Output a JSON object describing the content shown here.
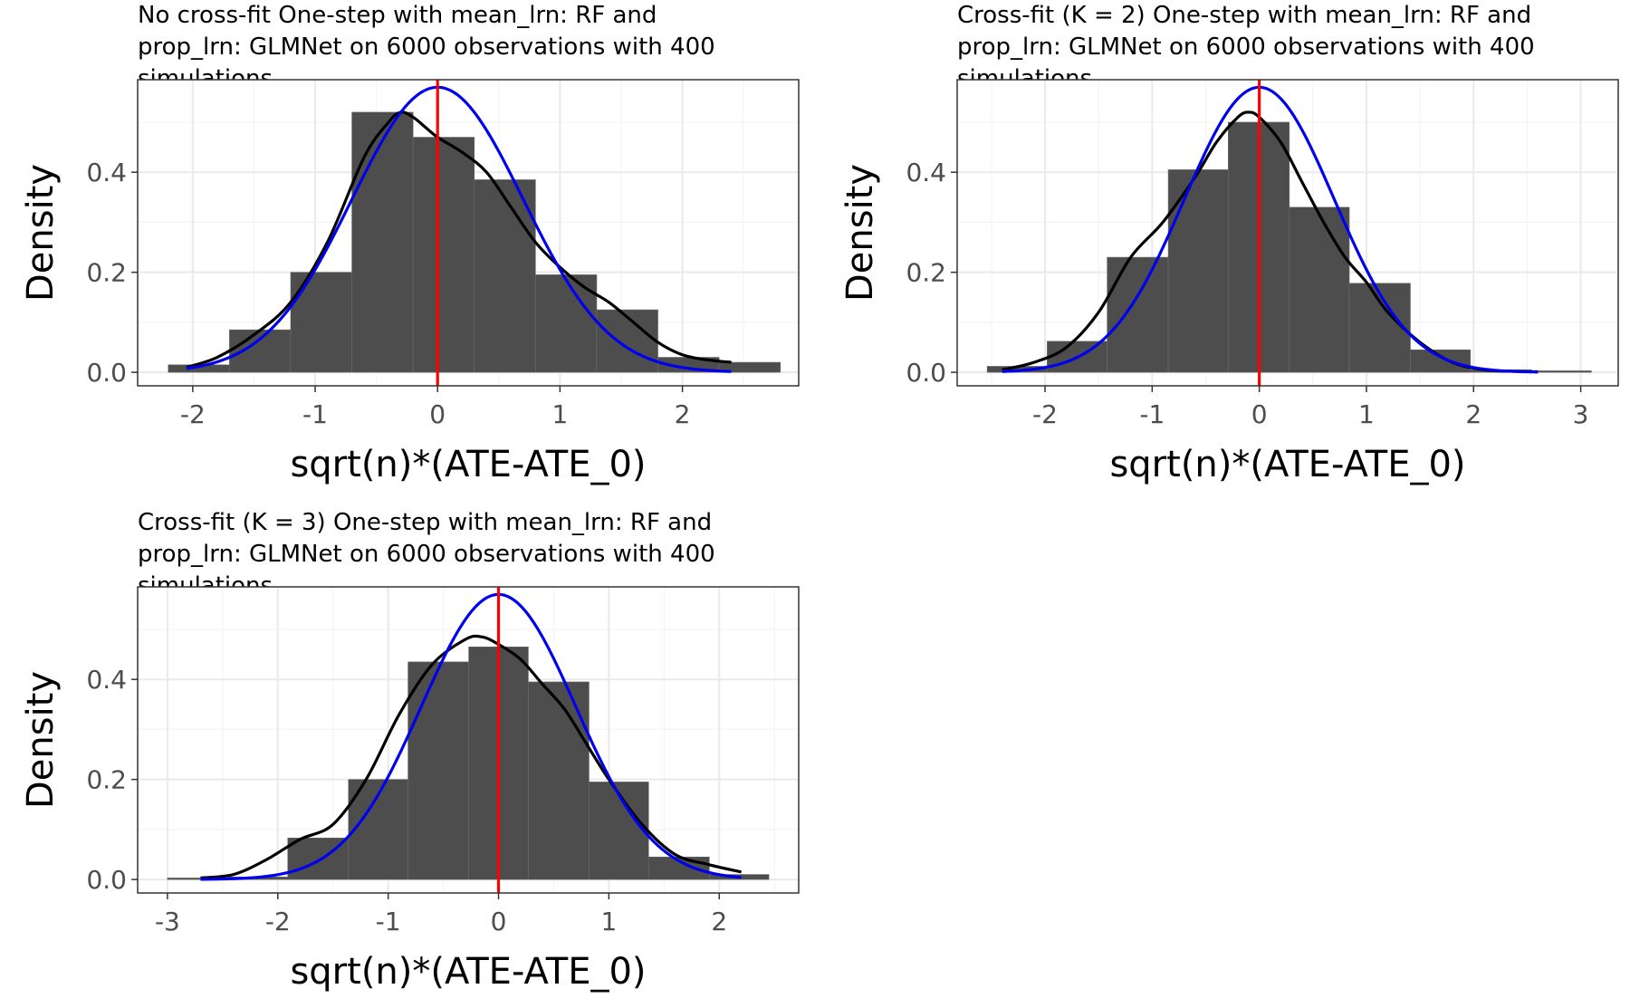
{
  "colors": {
    "bar_fill": "#4d4d4d",
    "bar_edge": "#6b6b6b",
    "kde_line": "#000000",
    "normal_line": "#0000ee",
    "zero_line": "#ff0000",
    "grid_major": "#ebebeb",
    "grid_minor": "#f4f4f4",
    "panel_border": "#333333"
  },
  "chart_data": [
    {
      "type": "bar",
      "title_lines": [
        "No cross-fit One-step with mean_lrn: RF and",
        "prop_lrn: GLMNet on 6000 observations with 400",
        "simulations"
      ],
      "xlabel": "sqrt(n)*(ATE-ATE_0)",
      "ylabel": "Density",
      "xlim": [
        -2.45,
        2.95
      ],
      "ylim": [
        -0.027,
        0.585
      ],
      "x_ticks": [
        -2,
        -1,
        0,
        1,
        2
      ],
      "x_tick_labels": [
        "-2",
        "-1",
        "0",
        "1",
        "2"
      ],
      "y_ticks": [
        0,
        0.2,
        0.4
      ],
      "y_tick_labels": [
        "0.0",
        "0.2",
        "0.4"
      ],
      "grid": true,
      "bins": [
        {
          "x0": -2.2,
          "x1": -1.7,
          "density": 0.015
        },
        {
          "x0": -1.7,
          "x1": -1.2,
          "density": 0.085
        },
        {
          "x0": -1.2,
          "x1": -0.7,
          "density": 0.2
        },
        {
          "x0": -0.7,
          "x1": -0.2,
          "density": 0.52
        },
        {
          "x0": -0.2,
          "x1": 0.3,
          "density": 0.47
        },
        {
          "x0": 0.3,
          "x1": 0.8,
          "density": 0.385
        },
        {
          "x0": 0.8,
          "x1": 1.3,
          "density": 0.195
        },
        {
          "x0": 1.3,
          "x1": 1.8,
          "density": 0.125
        },
        {
          "x0": 1.8,
          "x1": 2.3,
          "density": 0.03
        },
        {
          "x0": 2.3,
          "x1": 2.8,
          "density": 0.02
        }
      ],
      "kde": {
        "x": [
          -2.05,
          -1.8,
          -1.5,
          -1.2,
          -0.9,
          -0.6,
          -0.4,
          -0.3,
          -0.2,
          -0.1,
          0.0,
          0.2,
          0.4,
          0.6,
          0.8,
          1.0,
          1.2,
          1.4,
          1.6,
          1.8,
          2.0,
          2.2,
          2.4
        ],
        "y": [
          0.01,
          0.03,
          0.075,
          0.14,
          0.26,
          0.43,
          0.5,
          0.52,
          0.51,
          0.49,
          0.47,
          0.44,
          0.4,
          0.33,
          0.26,
          0.21,
          0.17,
          0.14,
          0.1,
          0.06,
          0.035,
          0.025,
          0.02
        ]
      },
      "normal": {
        "mean": 0,
        "sd": 0.7,
        "x_min": -2.05,
        "x_max": 2.4
      },
      "vline_x": 0
    },
    {
      "type": "bar",
      "title_lines": [
        "Cross-fit (K = 2) One-step with mean_lrn: RF and",
        "prop_lrn: GLMNet on 6000 observations with 400",
        "simulations"
      ],
      "xlabel": "sqrt(n)*(ATE-ATE_0)",
      "ylabel": "Density",
      "xlim": [
        -2.82,
        3.35
      ],
      "ylim": [
        -0.027,
        0.585
      ],
      "x_ticks": [
        -2,
        -1,
        0,
        1,
        2,
        3
      ],
      "x_tick_labels": [
        "-2",
        "-1",
        "0",
        "1",
        "2",
        "3"
      ],
      "y_ticks": [
        0,
        0.2,
        0.4
      ],
      "y_tick_labels": [
        "0.0",
        "0.2",
        "0.4"
      ],
      "grid": true,
      "bins": [
        {
          "x0": -2.54,
          "x1": -1.98,
          "density": 0.012
        },
        {
          "x0": -1.98,
          "x1": -1.42,
          "density": 0.062
        },
        {
          "x0": -1.42,
          "x1": -0.85,
          "density": 0.23
        },
        {
          "x0": -0.85,
          "x1": -0.29,
          "density": 0.405
        },
        {
          "x0": -0.29,
          "x1": 0.28,
          "density": 0.5
        },
        {
          "x0": 0.28,
          "x1": 0.84,
          "density": 0.33
        },
        {
          "x0": 0.84,
          "x1": 1.41,
          "density": 0.178
        },
        {
          "x0": 1.41,
          "x1": 1.97,
          "density": 0.045
        },
        {
          "x0": 1.97,
          "x1": 2.54,
          "density": 0.005
        },
        {
          "x0": 2.54,
          "x1": 3.1,
          "density": 0.003
        }
      ],
      "kde": {
        "x": [
          -2.4,
          -2.1,
          -1.8,
          -1.5,
          -1.2,
          -0.9,
          -0.6,
          -0.4,
          -0.2,
          -0.1,
          0.0,
          0.2,
          0.4,
          0.6,
          0.8,
          1.0,
          1.2,
          1.5,
          1.8,
          2.1,
          2.4,
          2.6
        ],
        "y": [
          0.005,
          0.02,
          0.05,
          0.12,
          0.23,
          0.3,
          0.39,
          0.46,
          0.51,
          0.52,
          0.51,
          0.46,
          0.38,
          0.3,
          0.23,
          0.18,
          0.12,
          0.06,
          0.02,
          0.005,
          0.002,
          0.001
        ]
      },
      "normal": {
        "mean": 0,
        "sd": 0.7,
        "x_min": -2.4,
        "x_max": 2.6
      },
      "vline_x": 0
    },
    {
      "type": "bar",
      "title_lines": [
        "Cross-fit (K = 3) One-step with mean_lrn: RF and",
        "prop_lrn: GLMNet on 6000 observations with 400",
        "simulations"
      ],
      "xlabel": "sqrt(n)*(ATE-ATE_0)",
      "ylabel": "Density",
      "xlim": [
        -3.27,
        2.72
      ],
      "ylim": [
        -0.027,
        0.585
      ],
      "x_ticks": [
        -3,
        -2,
        -1,
        0,
        1,
        2
      ],
      "x_tick_labels": [
        "-3",
        "-2",
        "-1",
        "0",
        "1",
        "2"
      ],
      "y_ticks": [
        0,
        0.2,
        0.4
      ],
      "y_tick_labels": [
        "0.0",
        "0.2",
        "0.4"
      ],
      "grid": true,
      "bins": [
        {
          "x0": -3.0,
          "x1": -2.45,
          "density": 0.003
        },
        {
          "x0": -2.45,
          "x1": -1.91,
          "density": 0.005
        },
        {
          "x0": -1.91,
          "x1": -1.36,
          "density": 0.083
        },
        {
          "x0": -1.36,
          "x1": -0.82,
          "density": 0.2
        },
        {
          "x0": -0.82,
          "x1": -0.27,
          "density": 0.435
        },
        {
          "x0": -0.27,
          "x1": 0.27,
          "density": 0.465
        },
        {
          "x0": 0.27,
          "x1": 0.82,
          "density": 0.395
        },
        {
          "x0": 0.82,
          "x1": 1.36,
          "density": 0.195
        },
        {
          "x0": 1.36,
          "x1": 1.91,
          "density": 0.045
        },
        {
          "x0": 1.91,
          "x1": 2.45,
          "density": 0.01
        }
      ],
      "kde": {
        "x": [
          -2.7,
          -2.4,
          -2.1,
          -1.8,
          -1.5,
          -1.2,
          -0.9,
          -0.6,
          -0.3,
          -0.15,
          0.0,
          0.2,
          0.4,
          0.6,
          0.8,
          1.0,
          1.3,
          1.6,
          1.9,
          2.2
        ],
        "y": [
          0.003,
          0.01,
          0.04,
          0.08,
          0.11,
          0.2,
          0.33,
          0.43,
          0.48,
          0.485,
          0.47,
          0.44,
          0.39,
          0.34,
          0.27,
          0.2,
          0.11,
          0.05,
          0.03,
          0.015
        ]
      },
      "normal": {
        "mean": 0,
        "sd": 0.7,
        "x_min": -2.7,
        "x_max": 2.2
      },
      "vline_x": 0
    }
  ]
}
